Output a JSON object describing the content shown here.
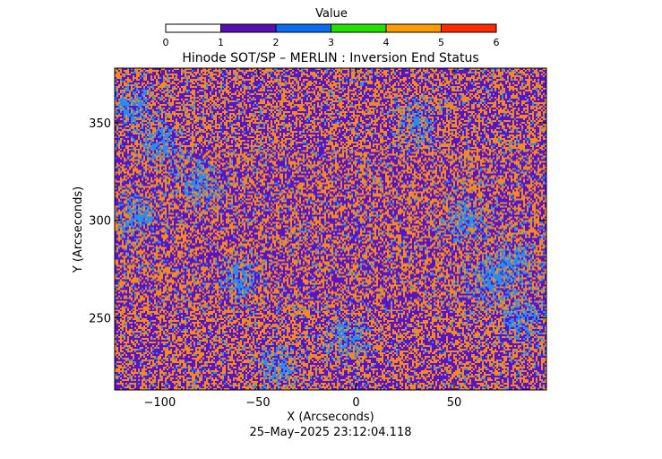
{
  "colorbar": {
    "label": "Value",
    "min": 0,
    "max": 6,
    "ticks": [
      "0",
      "1",
      "2",
      "3",
      "4",
      "5",
      "6"
    ],
    "bands": [
      {
        "from": 0,
        "to": 1,
        "color": "#ffffff"
      },
      {
        "from": 1,
        "to": 2,
        "color": "#5a0fb4"
      },
      {
        "from": 2,
        "to": 3,
        "color": "#0a6cf0"
      },
      {
        "from": 3,
        "to": 4,
        "color": "#22e000"
      },
      {
        "from": 4,
        "to": 5,
        "color": "#ff9a00"
      },
      {
        "from": 5,
        "to": 6,
        "color": "#ff2a00"
      }
    ]
  },
  "chart_data": {
    "type": "heatmap",
    "title": "Hinode SOT/SP – MERLIN : Inversion End Status",
    "xlabel": "X (Arcseconds)",
    "ylabel": "Y (Arcseconds)",
    "xlim": [
      -123,
      97
    ],
    "ylim": [
      213,
      378
    ],
    "xticks": [
      -100,
      -50,
      0,
      50
    ],
    "yticks": [
      250,
      300,
      350
    ],
    "xtick_labels": [
      "−100",
      "−50",
      "0",
      "50"
    ],
    "ytick_labels": [
      "250",
      "300",
      "350"
    ],
    "dominant_values": [
      {
        "value_range": [
          1,
          2
        ],
        "color": "#5a14c8",
        "share": 0.45
      },
      {
        "value_range": [
          4,
          5
        ],
        "color": "#f28a20",
        "share": 0.45
      },
      {
        "value_range": [
          2,
          3
        ],
        "color": "#2a8cf0",
        "share": 0.1
      }
    ],
    "blue_clusters": [
      {
        "x": -112,
        "y": 302
      },
      {
        "x": -100,
        "y": 340
      },
      {
        "x": -80,
        "y": 320
      },
      {
        "x": -60,
        "y": 270
      },
      {
        "x": -40,
        "y": 225
      },
      {
        "x": 55,
        "y": 300
      },
      {
        "x": 67,
        "y": 270
      },
      {
        "x": 80,
        "y": 280
      },
      {
        "x": 85,
        "y": 250
      },
      {
        "x": -5,
        "y": 240
      },
      {
        "x": 30,
        "y": 350
      },
      {
        "x": -115,
        "y": 360
      }
    ],
    "timestamp": "25–May–2025 23:12:04.118"
  }
}
